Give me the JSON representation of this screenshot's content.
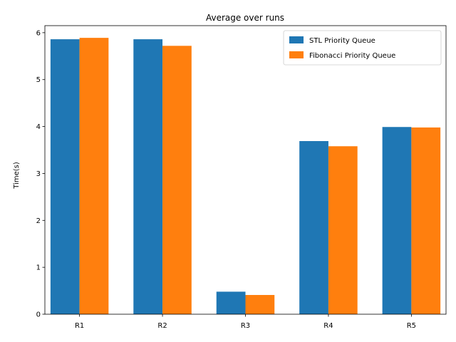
{
  "chart_data": {
    "type": "bar",
    "title": "Average over runs",
    "xlabel": "",
    "ylabel": "Time(s)",
    "categories": [
      "R1",
      "R2",
      "R3",
      "R4",
      "R5"
    ],
    "series": [
      {
        "name": "STL Priority Queue",
        "color": "#1f77b4",
        "values": [
          5.86,
          5.86,
          0.48,
          3.69,
          3.99
        ]
      },
      {
        "name": "Fibonacci Priority Queue",
        "color": "#ff7f0e",
        "values": [
          5.89,
          5.72,
          0.41,
          3.58,
          3.98
        ]
      }
    ],
    "ylim": [
      0,
      6.15
    ],
    "yticks": [
      0,
      1,
      2,
      3,
      4,
      5,
      6
    ],
    "grid": false,
    "legend_position": "top-right"
  }
}
